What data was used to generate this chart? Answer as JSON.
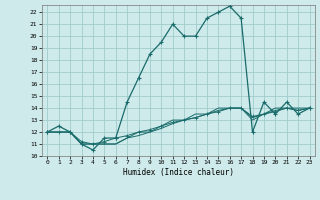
{
  "title": "",
  "xlabel": "Humidex (Indice chaleur)",
  "xlim": [
    -0.5,
    23.5
  ],
  "ylim": [
    10,
    22.6
  ],
  "yticks": [
    10,
    11,
    12,
    13,
    14,
    15,
    16,
    17,
    18,
    19,
    20,
    21,
    22
  ],
  "xticks": [
    0,
    1,
    2,
    3,
    4,
    5,
    6,
    7,
    8,
    9,
    10,
    11,
    12,
    13,
    14,
    15,
    16,
    17,
    18,
    19,
    20,
    21,
    22,
    23
  ],
  "xtick_labels": [
    "0",
    "1",
    "2",
    "3",
    "4",
    "5",
    "6",
    "7",
    "8",
    "9",
    "10",
    "11",
    "12",
    "13",
    "14",
    "15",
    "16",
    "17",
    "18",
    "19",
    "20",
    "21",
    "22",
    "23"
  ],
  "bg_color": "#ceeaea",
  "grid_color": "#a0cccc",
  "line_color": "#1a6b6b",
  "main_y": [
    12,
    12.5,
    12,
    11,
    10.5,
    11.5,
    11.5,
    14.5,
    16.5,
    18.5,
    19.5,
    21,
    20,
    20,
    21.5,
    22,
    22.5,
    21.5,
    12,
    14.5,
    13.5,
    14.5,
    13.5,
    14
  ],
  "line2_y": [
    12,
    12,
    12,
    11,
    11,
    11,
    11,
    11.5,
    12,
    12,
    12.5,
    13,
    13,
    13.5,
    13.5,
    14,
    14,
    14,
    13,
    13.5,
    14,
    14,
    14,
    14
  ],
  "line3_y": [
    12,
    12,
    12,
    11,
    11,
    11,
    11,
    11.5,
    11.7,
    12,
    12.3,
    12.7,
    13,
    13.2,
    13.5,
    13.8,
    14,
    14,
    13.2,
    13.5,
    13.8,
    14,
    13.8,
    14
  ],
  "line4_y": [
    12,
    12,
    12,
    11.2,
    11,
    11.2,
    11.5,
    11.7,
    12,
    12.2,
    12.5,
    12.8,
    13,
    13.2,
    13.5,
    13.7,
    14,
    14,
    13.3,
    13.5,
    13.7,
    14,
    13.8,
    14
  ]
}
